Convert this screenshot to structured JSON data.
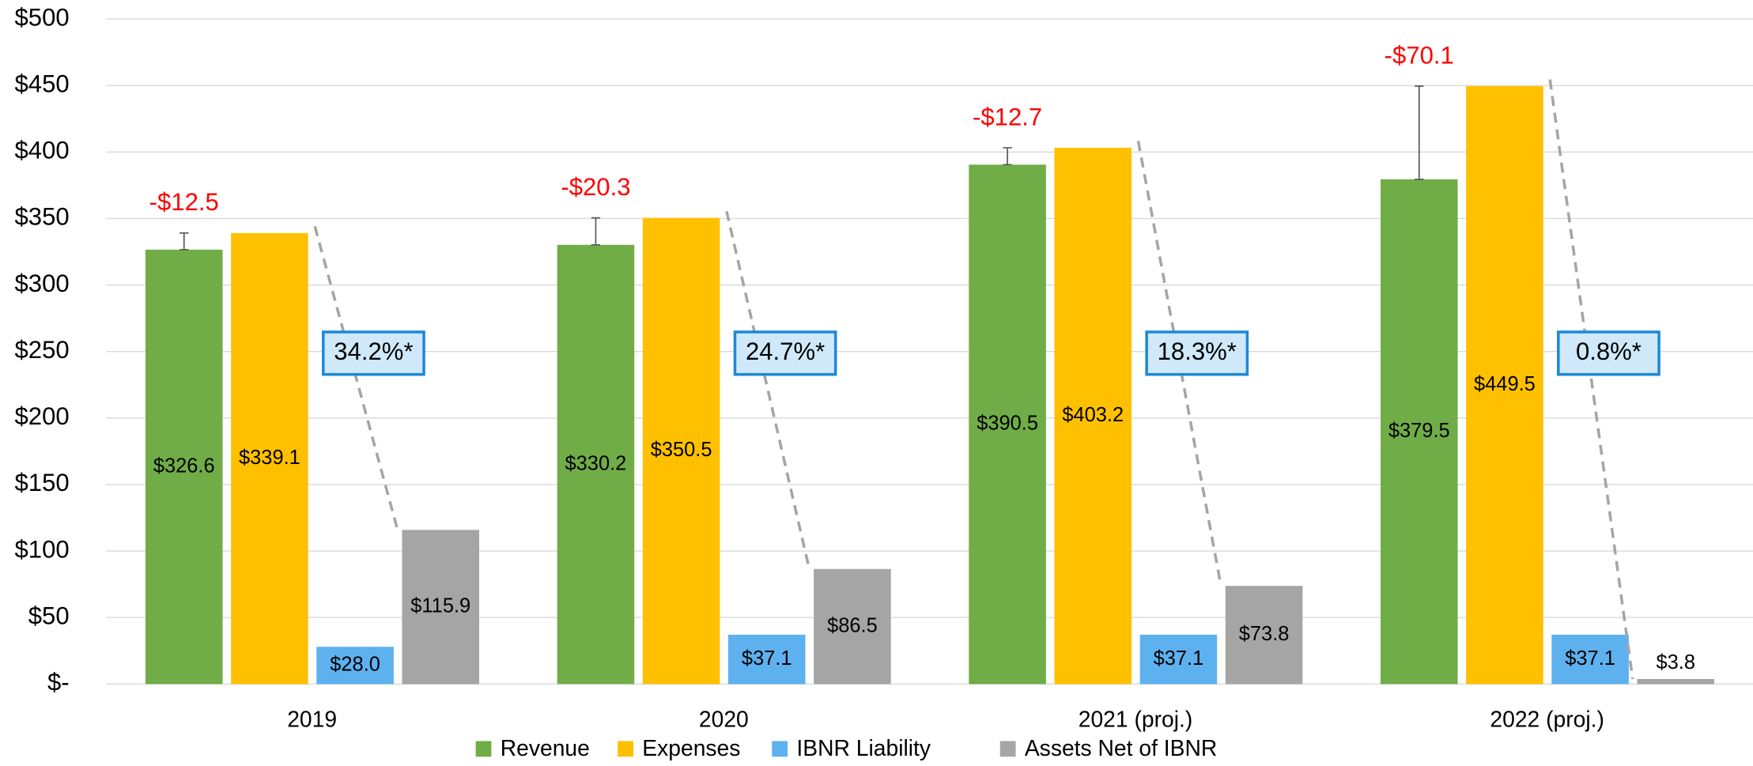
{
  "chart_data": {
    "type": "bar",
    "categories": [
      "2019",
      "2020",
      "2021 (proj.)",
      "2022 (proj.)"
    ],
    "series": [
      {
        "name": "Revenue",
        "color": "#70ad47",
        "values": [
          326.6,
          330.2,
          390.5,
          379.5
        ],
        "value_labels": [
          "$326.6",
          "$330.2",
          "$390.5",
          "$379.5"
        ]
      },
      {
        "name": "Expenses",
        "color": "#ffc000",
        "values": [
          339.1,
          350.5,
          403.2,
          449.5
        ],
        "value_labels": [
          "$339.1",
          "$350.5",
          "$403.2",
          "$449.5"
        ]
      },
      {
        "name": "IBNR Liability",
        "color": "#5eb1ef",
        "values": [
          28.0,
          37.1,
          37.1,
          37.1
        ],
        "value_labels": [
          "$28.0",
          "$37.1",
          "$37.1",
          "$37.1"
        ]
      },
      {
        "name": "Assets Net of IBNR",
        "color": "#a5a5a5",
        "values": [
          115.9,
          86.5,
          73.8,
          3.8
        ],
        "value_labels": [
          "$115.9",
          "$86.5",
          "$73.8",
          "$3.8"
        ]
      }
    ],
    "deficit": {
      "values": [
        -12.5,
        -20.3,
        -12.7,
        -70.1
      ],
      "value_labels": [
        "-$12.5",
        "-$20.3",
        "-$12.7",
        "-$70.1"
      ],
      "color": "#ff0000"
    },
    "percentages": {
      "values": [
        34.2,
        24.7,
        18.3,
        0.8
      ],
      "value_labels": [
        "34.2%*",
        "24.7%*",
        "18.3%*",
        "0.8%*"
      ]
    },
    "ylim": [
      0,
      500
    ],
    "yticks": [
      {
        "value": 0,
        "label": "$-"
      },
      {
        "value": 50,
        "label": "$50"
      },
      {
        "value": 100,
        "label": "$100"
      },
      {
        "value": 150,
        "label": "$150"
      },
      {
        "value": 200,
        "label": "$200"
      },
      {
        "value": 250,
        "label": "$250"
      },
      {
        "value": 300,
        "label": "$300"
      },
      {
        "value": 350,
        "label": "$350"
      },
      {
        "value": 400,
        "label": "$400"
      },
      {
        "value": 450,
        "label": "$450"
      },
      {
        "value": 500,
        "label": "$500"
      }
    ],
    "grid": true,
    "legend": "bottom"
  }
}
